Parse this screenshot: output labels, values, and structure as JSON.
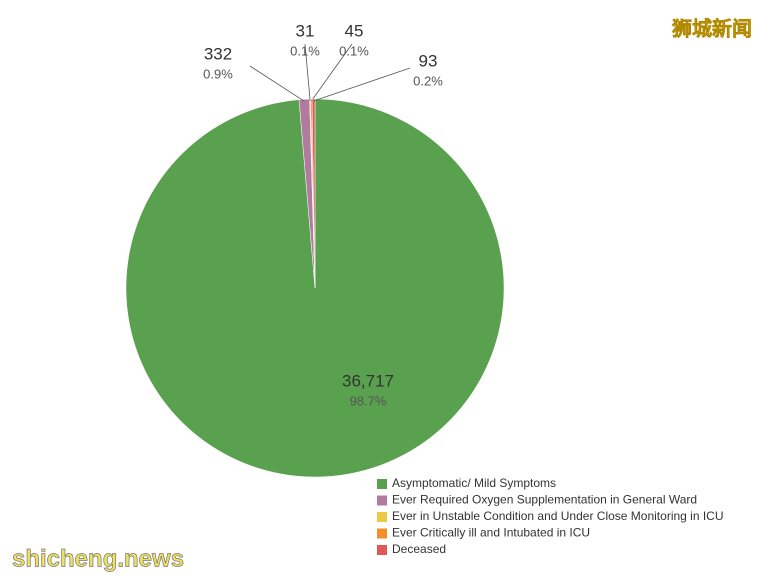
{
  "chart_data": {
    "type": "pie",
    "categories": [
      "Asymptomatic/ Mild Symptoms",
      "Ever Required Oxygen Supplementation in General Ward",
      "Ever in Unstable Condition and Under Close Monitoring in ICU",
      "Ever Critically ill and Intubated in ICU",
      "Deceased"
    ],
    "values": [
      36717,
      332,
      31,
      45,
      93
    ],
    "value_labels": [
      "36,717",
      "332",
      "31",
      "45",
      "93"
    ],
    "percent_labels": [
      "98.7%",
      "0.9%",
      "0.1%",
      "0.1%",
      "0.2%"
    ],
    "colors": [
      "#59a14f",
      "#b07aa1",
      "#edc948",
      "#f28e2b",
      "#e15759"
    ],
    "legend": "bottom-right"
  },
  "watermarks": [
    "狮城新闻",
    "shicheng.news"
  ]
}
